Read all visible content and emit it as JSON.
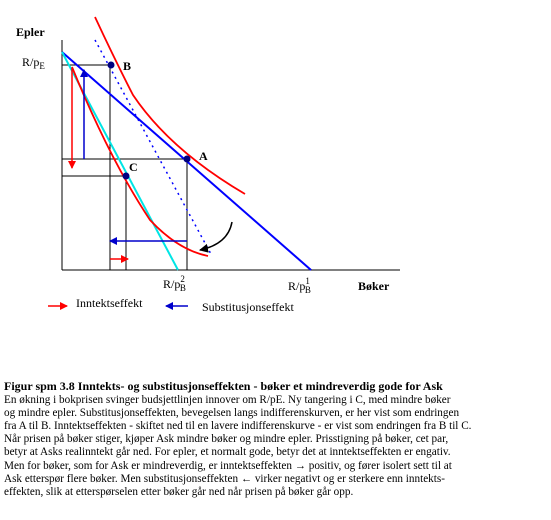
{
  "axes": {
    "y_label": "Epler",
    "x_label": "Bøker"
  },
  "ticks": {
    "y_main": "R/p",
    "y_sub": "E",
    "x2_main": "R/p",
    "x2_sup": "2",
    "x2_sub": "B",
    "x1_main": "R/p",
    "x1_sup": "1",
    "x1_sub": "B"
  },
  "points": {
    "A": "A",
    "B": "B",
    "C": "C"
  },
  "legend": {
    "income": "Inntektseffekt",
    "substitution": "Substitusjonseffekt"
  },
  "colors": {
    "income": "#ff0000",
    "substitution": "#0000cc",
    "budget": "#0000ff",
    "parallel": "#00e5e5",
    "curve": "#ff0000"
  },
  "caption": {
    "title": "Figur spm 3.8   Inntekts- og substitusjonseffekten - bøker et mindreverdig gode for Ask",
    "lines": [
      "En økning i bokprisen svinger budsjettlinjen innover om R/pE. Ny tangering i C, med mindre bøker",
      "og mindre epler. Substitusjonseffekten, bevegelsen langs indifferenskurven, er her vist som endringen",
      "fra A til B. Inntektseffekten - skiftet ned til en lavere indifferenskurve - er vist som endringen fra B til C.",
      "Når prisen på bøker stiger, kjøper Ask mindre bøker og mindre epler. Prisstigning på bøker, cet par,",
      "betyr at Asks realinntekt går ned. For epler, et normalt gode, betyr det at inntektseffekten er engativ.",
      "Men for bøker, som for Ask er mindreverdig, er inntektseffekten → positiv, og fører isolert sett til at",
      "Ask etterspør flere bøker. Men substitusjonseffekten ← virker negativt og er sterkere enn inntekts-",
      "effekten, slik at etterspørselen etter bøker går ned når prisen på bøker går opp."
    ]
  }
}
